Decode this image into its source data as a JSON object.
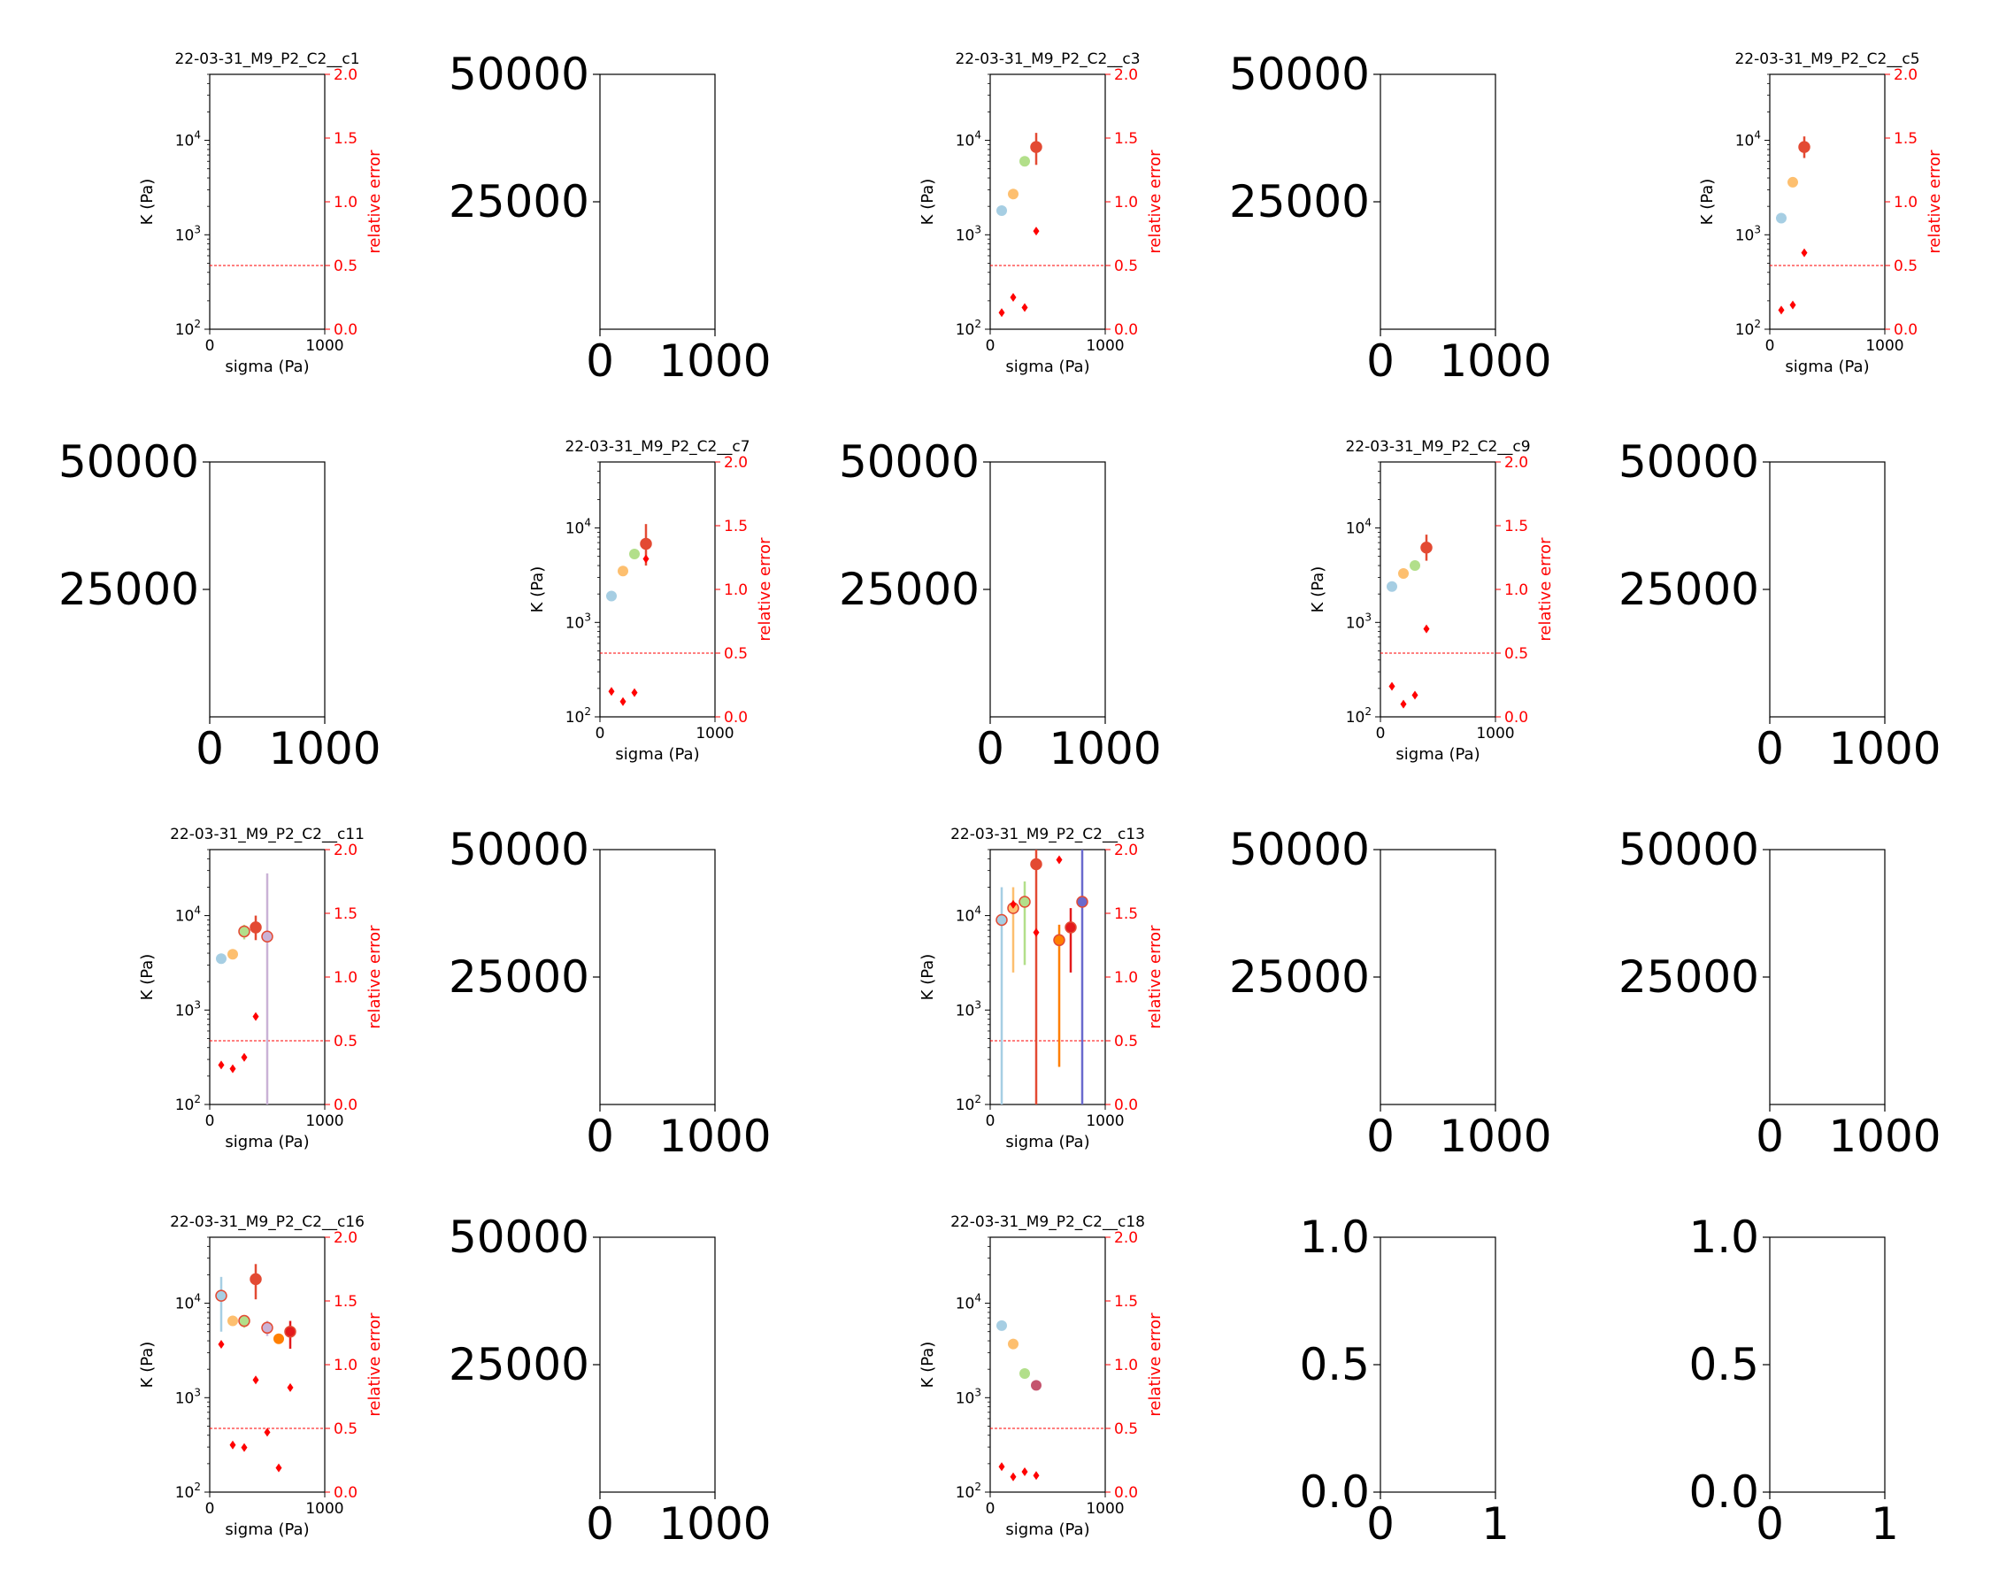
{
  "figure": {
    "x_ticks": [
      "0",
      "1000"
    ],
    "y_ticks_log": [
      "10^2",
      "10^3",
      "10^4"
    ],
    "y2_ticks": [
      "0.0",
      "0.5",
      "1.0",
      "1.5",
      "2.0"
    ],
    "xlabel": "sigma (Pa)",
    "ylabel": "K (Pa)",
    "y2label": "relative error",
    "empty_y_ticks": [
      "50000",
      "25000"
    ],
    "unit_y_ticks": [
      "1.0",
      "0.5",
      "0.0"
    ],
    "unit_x_ticks": [
      "0",
      "1"
    ]
  },
  "colors": {
    "error_marker": "#ff0000",
    "threshold_line": "#ff0000",
    "palette": [
      "#a6cee3",
      "#fdbf6f",
      "#b2df8a",
      "#e31a1c",
      "#cab2d6",
      "#ff7f00",
      "#6a3d9a",
      "#1f78b4"
    ]
  },
  "chart_data": [
    {
      "type": "scatter",
      "title": "22-03-31_M9_P2_C2__c1",
      "xlabel": "sigma (Pa)",
      "ylabel": "K (Pa)",
      "y2label": "relative error",
      "xlim": [
        0,
        1000
      ],
      "ylim": [
        100,
        50000
      ],
      "y2lim": [
        0,
        2
      ],
      "yscale": "log",
      "threshold": 0.5,
      "points": [],
      "rel_error": []
    },
    {
      "type": "scatter",
      "title": "22-03-31_M9_P2_C2__c3",
      "xlabel": "sigma (Pa)",
      "ylabel": "K (Pa)",
      "y2label": "relative error",
      "xlim": [
        0,
        1000
      ],
      "ylim": [
        100,
        50000
      ],
      "y2lim": [
        0,
        2
      ],
      "yscale": "log",
      "threshold": 0.5,
      "points": [
        {
          "x": 100,
          "y": 1800,
          "lo": 1800,
          "hi": 1800,
          "color": "#a6cee3"
        },
        {
          "x": 200,
          "y": 2700,
          "lo": 2700,
          "hi": 2700,
          "color": "#fdbf6f"
        },
        {
          "x": 300,
          "y": 6000,
          "lo": 6000,
          "hi": 6000,
          "color": "#b2df8a"
        },
        {
          "x": 400,
          "y": 8500,
          "lo": 5500,
          "hi": 12000,
          "color": "#e34a33"
        }
      ],
      "rel_error": [
        [
          100,
          0.13
        ],
        [
          200,
          0.25
        ],
        [
          300,
          0.17
        ],
        [
          400,
          0.77
        ]
      ]
    },
    {
      "type": "scatter",
      "title": "22-03-31_M9_P2_C2__c5",
      "xlabel": "sigma (Pa)",
      "ylabel": "K (Pa)",
      "y2label": "relative error",
      "xlim": [
        0,
        1000
      ],
      "ylim": [
        100,
        50000
      ],
      "y2lim": [
        0,
        2
      ],
      "yscale": "log",
      "threshold": 0.5,
      "points": [
        {
          "x": 100,
          "y": 1500,
          "lo": 1500,
          "hi": 1500,
          "color": "#a6cee3"
        },
        {
          "x": 200,
          "y": 3600,
          "lo": 3600,
          "hi": 3600,
          "color": "#fdbf6f"
        },
        {
          "x": 300,
          "y": 8500,
          "lo": 6500,
          "hi": 11000,
          "color": "#e34a33"
        }
      ],
      "rel_error": [
        [
          100,
          0.15
        ],
        [
          200,
          0.19
        ],
        [
          300,
          0.6
        ]
      ]
    },
    {
      "type": "scatter",
      "title": "22-03-31_M9_P2_C2__c7",
      "xlabel": "sigma (Pa)",
      "ylabel": "K (Pa)",
      "y2label": "relative error",
      "xlim": [
        0,
        1000
      ],
      "ylim": [
        100,
        50000
      ],
      "y2lim": [
        0,
        2
      ],
      "yscale": "log",
      "threshold": 0.5,
      "points": [
        {
          "x": 100,
          "y": 1900,
          "lo": 1900,
          "hi": 1900,
          "color": "#a6cee3"
        },
        {
          "x": 200,
          "y": 3500,
          "lo": 3500,
          "hi": 3500,
          "color": "#fdbf6f"
        },
        {
          "x": 300,
          "y": 5300,
          "lo": 5300,
          "hi": 5300,
          "color": "#b2df8a"
        },
        {
          "x": 400,
          "y": 6800,
          "lo": 4000,
          "hi": 11000,
          "color": "#e34a33"
        }
      ],
      "rel_error": [
        [
          100,
          0.2
        ],
        [
          200,
          0.12
        ],
        [
          300,
          0.19
        ],
        [
          400,
          1.24
        ]
      ]
    },
    {
      "type": "scatter",
      "title": "22-03-31_M9_P2_C2__c9",
      "xlabel": "sigma (Pa)",
      "ylabel": "K (Pa)",
      "y2label": "relative error",
      "xlim": [
        0,
        1000
      ],
      "ylim": [
        100,
        50000
      ],
      "y2lim": [
        0,
        2
      ],
      "yscale": "log",
      "threshold": 0.5,
      "points": [
        {
          "x": 100,
          "y": 2400,
          "lo": 2400,
          "hi": 2400,
          "color": "#a6cee3"
        },
        {
          "x": 200,
          "y": 3300,
          "lo": 3300,
          "hi": 3300,
          "color": "#fdbf6f"
        },
        {
          "x": 300,
          "y": 4000,
          "lo": 4000,
          "hi": 4000,
          "color": "#b2df8a"
        },
        {
          "x": 400,
          "y": 6200,
          "lo": 4500,
          "hi": 8500,
          "color": "#e34a33"
        }
      ],
      "rel_error": [
        [
          100,
          0.24
        ],
        [
          200,
          0.1
        ],
        [
          300,
          0.17
        ],
        [
          400,
          0.69
        ]
      ]
    },
    {
      "type": "scatter",
      "title": "22-03-31_M9_P2_C2__c11",
      "xlabel": "sigma (Pa)",
      "ylabel": "K (Pa)",
      "y2label": "relative error",
      "xlim": [
        0,
        1000
      ],
      "ylim": [
        100,
        50000
      ],
      "y2lim": [
        0,
        2
      ],
      "yscale": "log",
      "threshold": 0.5,
      "points": [
        {
          "x": 100,
          "y": 3500,
          "lo": 3500,
          "hi": 3500,
          "color": "#a6cee3"
        },
        {
          "x": 200,
          "y": 3900,
          "lo": 3900,
          "hi": 3900,
          "color": "#fdbf6f"
        },
        {
          "x": 300,
          "y": 6800,
          "lo": 5600,
          "hi": 8000,
          "color": "#b2df8a"
        },
        {
          "x": 400,
          "y": 7500,
          "lo": 5500,
          "hi": 10000,
          "color": "#e34a33"
        },
        {
          "x": 500,
          "y": 6000,
          "lo": 100,
          "hi": 28000,
          "color": "#cab2d6"
        }
      ],
      "rel_error": [
        [
          100,
          0.31
        ],
        [
          200,
          0.28
        ],
        [
          300,
          0.37
        ],
        [
          400,
          0.69
        ]
      ]
    },
    {
      "type": "scatter",
      "title": "22-03-31_M9_P2_C2__c13",
      "xlabel": "sigma (Pa)",
      "ylabel": "K (Pa)",
      "y2label": "relative error",
      "xlim": [
        0,
        1000
      ],
      "ylim": [
        100,
        50000
      ],
      "y2lim": [
        0,
        2
      ],
      "yscale": "log",
      "threshold": 0.5,
      "points": [
        {
          "x": 100,
          "y": 9000,
          "lo": 100,
          "hi": 20000,
          "color": "#a6cee3"
        },
        {
          "x": 200,
          "y": 12000,
          "lo": 2500,
          "hi": 20000,
          "color": "#fdbf6f"
        },
        {
          "x": 300,
          "y": 14000,
          "lo": 3000,
          "hi": 23000,
          "color": "#b2df8a"
        },
        {
          "x": 400,
          "y": 35000,
          "lo": 100,
          "hi": 50000,
          "color": "#e34a33"
        },
        {
          "x": 600,
          "y": 5500,
          "lo": 250,
          "hi": 8000,
          "color": "#ff7f00"
        },
        {
          "x": 700,
          "y": 7500,
          "lo": 2500,
          "hi": 12000,
          "color": "#e31a1c"
        },
        {
          "x": 800,
          "y": 14000,
          "lo": 100,
          "hi": 50000,
          "color": "#6a6acd"
        }
      ],
      "rel_error": [
        [
          200,
          1.57
        ],
        [
          400,
          1.35
        ],
        [
          600,
          1.92
        ]
      ]
    },
    {
      "type": "scatter",
      "title": "22-03-31_M9_P2_C2__c16",
      "xlabel": "sigma (Pa)",
      "ylabel": "K (Pa)",
      "y2label": "relative error",
      "xlim": [
        0,
        1000
      ],
      "ylim": [
        100,
        50000
      ],
      "y2lim": [
        0,
        2
      ],
      "yscale": "log",
      "threshold": 0.5,
      "points": [
        {
          "x": 100,
          "y": 12000,
          "lo": 5000,
          "hi": 19000,
          "color": "#a6cee3"
        },
        {
          "x": 200,
          "y": 6500,
          "lo": 6500,
          "hi": 6500,
          "color": "#fdbf6f"
        },
        {
          "x": 300,
          "y": 6500,
          "lo": 5500,
          "hi": 7500,
          "color": "#b2df8a"
        },
        {
          "x": 400,
          "y": 18000,
          "lo": 11000,
          "hi": 26000,
          "color": "#e34a33"
        },
        {
          "x": 500,
          "y": 5500,
          "lo": 4500,
          "hi": 6500,
          "color": "#cab2d6"
        },
        {
          "x": 600,
          "y": 4200,
          "lo": 4200,
          "hi": 4200,
          "color": "#ff7f00"
        },
        {
          "x": 700,
          "y": 5000,
          "lo": 3300,
          "hi": 6500,
          "color": "#e31a1c"
        }
      ],
      "rel_error": [
        [
          100,
          1.16
        ],
        [
          200,
          0.37
        ],
        [
          300,
          0.35
        ],
        [
          400,
          0.88
        ],
        [
          500,
          0.47
        ],
        [
          600,
          0.19
        ],
        [
          700,
          0.82
        ]
      ]
    },
    {
      "type": "scatter",
      "title": "22-03-31_M9_P2_C2__c18",
      "xlabel": "sigma (Pa)",
      "ylabel": "K (Pa)",
      "y2label": "relative error",
      "xlim": [
        0,
        1000
      ],
      "ylim": [
        100,
        50000
      ],
      "y2lim": [
        0,
        2
      ],
      "yscale": "log",
      "threshold": 0.5,
      "points": [
        {
          "x": 100,
          "y": 5800,
          "lo": 5800,
          "hi": 5800,
          "color": "#a6cee3"
        },
        {
          "x": 200,
          "y": 3700,
          "lo": 3700,
          "hi": 3700,
          "color": "#fdbf6f"
        },
        {
          "x": 300,
          "y": 1800,
          "lo": 1800,
          "hi": 1800,
          "color": "#b2df8a"
        },
        {
          "x": 400,
          "y": 1350,
          "lo": 1350,
          "hi": 1350,
          "color": "#c4546e"
        }
      ],
      "rel_error": [
        [
          100,
          0.2
        ],
        [
          200,
          0.12
        ],
        [
          300,
          0.16
        ],
        [
          400,
          0.13
        ]
      ]
    }
  ]
}
